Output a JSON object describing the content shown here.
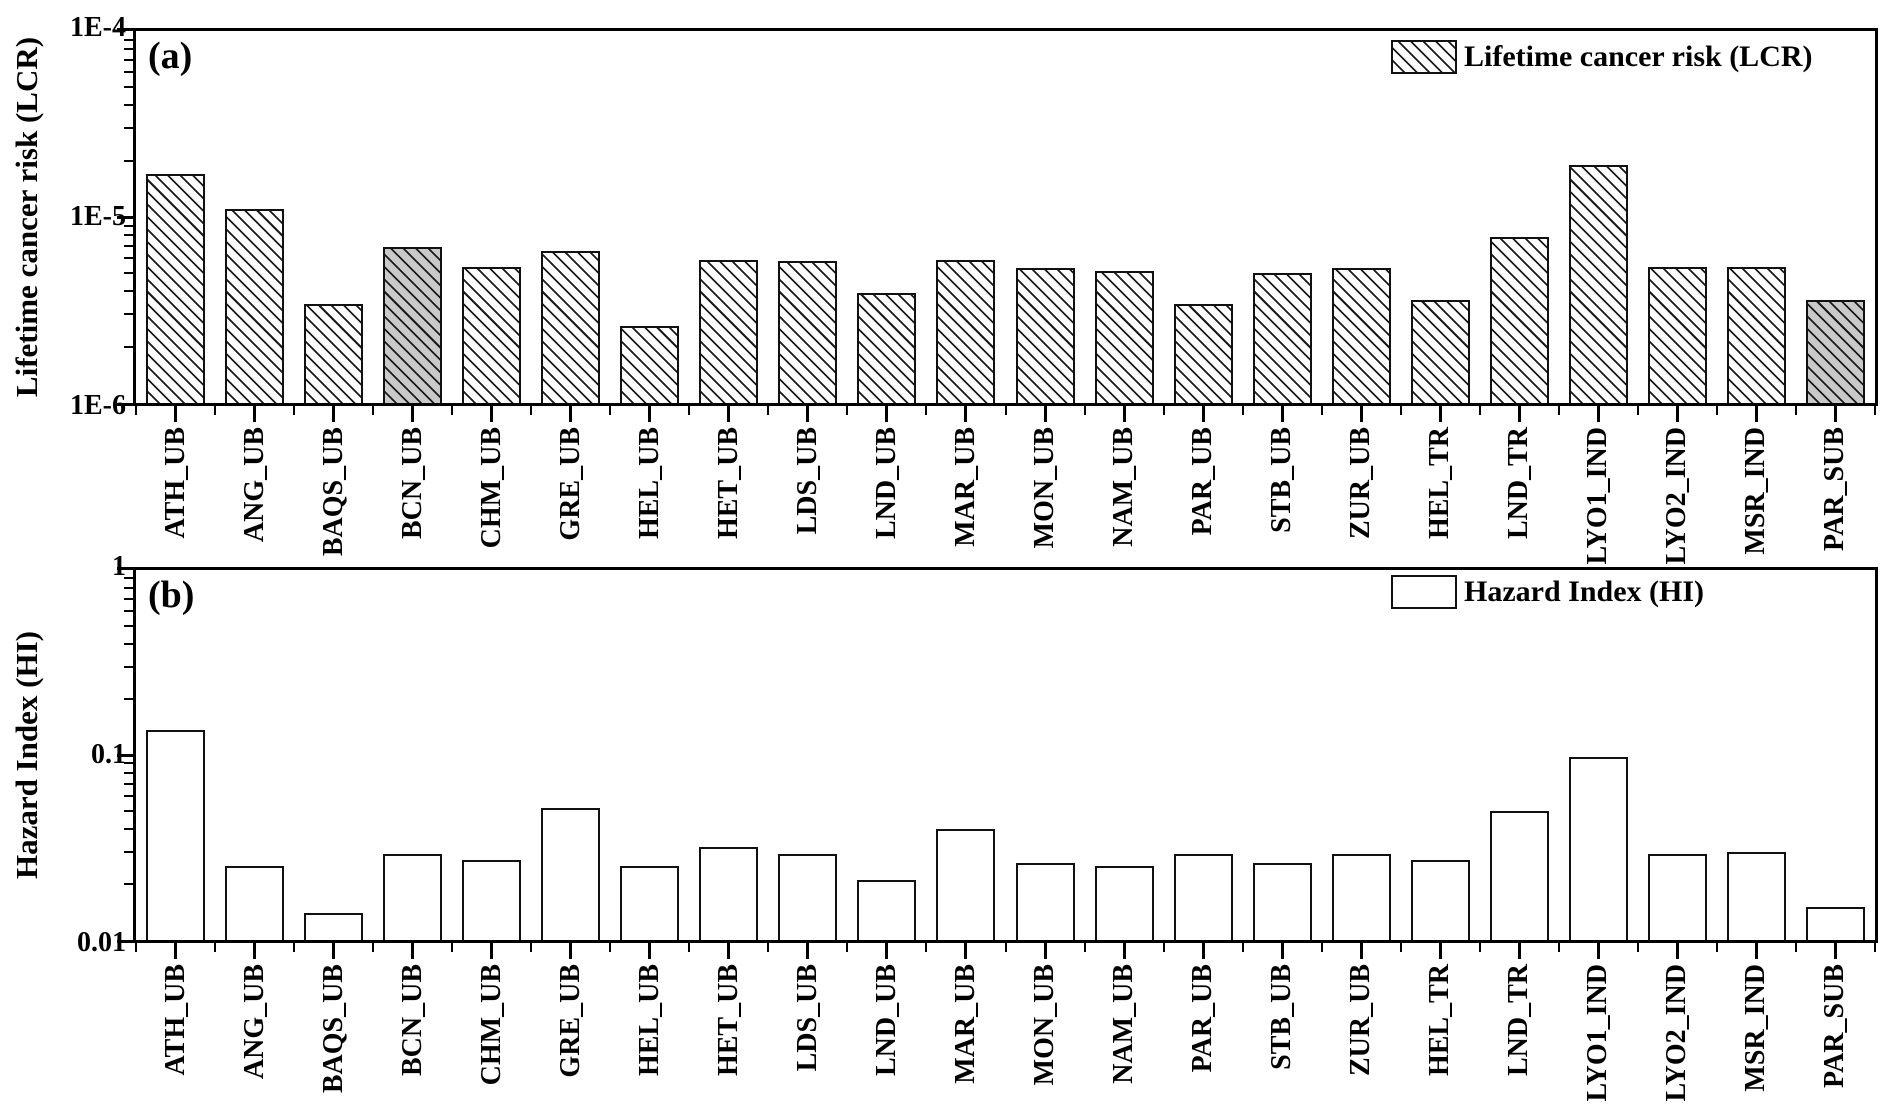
{
  "chart_data": [
    {
      "type": "bar",
      "panel": "(a)",
      "ylabel": "Lifetime cancer risk (LCR)",
      "legend": "Lifetime cancer risk (LCR)",
      "legend_position": "top-right",
      "yscale": "log",
      "ylim": [
        1e-06,
        0.0001
      ],
      "ytick_labels": [
        "1E-4",
        "1E-5",
        "1E-6"
      ],
      "grid": false,
      "hatch": "diagonal",
      "categories": [
        "ATH_UB",
        "ANG_UB",
        "BAQS_UB",
        "BCN_UB",
        "CHM_UB",
        "GRE_UB",
        "HEL_UB",
        "HET_UB",
        "LDS_UB",
        "LND_UB",
        "MAR_UB",
        "MON_UB",
        "NAM_UB",
        "PAR_UB",
        "STB_UB",
        "ZUR_UB",
        "HEL_TR",
        "LND_TR",
        "LYO1_IND",
        "LYO2_IND",
        "MSR_IND",
        "PAR_SUB"
      ],
      "values": [
        1.7e-05,
        1.1e-05,
        3.4e-06,
        6.9e-06,
        5.4e-06,
        6.6e-06,
        2.6e-06,
        5.9e-06,
        5.8e-06,
        3.9e-06,
        5.9e-06,
        5.3e-06,
        5.1e-06,
        3.4e-06,
        5e-06,
        5.3e-06,
        3.6e-06,
        7.8e-06,
        1.9e-05,
        5.4e-06,
        5.4e-06,
        3.6e-06
      ],
      "bar_fill": [
        "white",
        "white",
        "white",
        "gray",
        "white",
        "white",
        "white",
        "white",
        "white",
        "white",
        "white",
        "white",
        "white",
        "white",
        "white",
        "white",
        "white",
        "white",
        "white",
        "white",
        "white",
        "gray"
      ],
      "colors": {
        "bar_white": "#ffffff",
        "bar_gray": "#c9c9c9",
        "outline": "#111111"
      }
    },
    {
      "type": "bar",
      "panel": "(b)",
      "ylabel": "Hazard Index (HI)",
      "legend": "Hazard Index (HI)",
      "legend_position": "top-right",
      "yscale": "log",
      "ylim": [
        0.01,
        1
      ],
      "ytick_labels": [
        "1",
        "0.1",
        "0.01"
      ],
      "grid": false,
      "hatch": "none",
      "categories": [
        "ATH_UB",
        "ANG_UB",
        "BAQS_UB",
        "BCN_UB",
        "CHM_UB",
        "GRE_UB",
        "HEL_UB",
        "HET_UB",
        "LDS_UB",
        "LND_UB",
        "MAR_UB",
        "MON_UB",
        "NAM_UB",
        "PAR_UB",
        "STB_UB",
        "ZUR_UB",
        "HEL_TR",
        "LND_TR",
        "LYO1_IND",
        "LYO2_IND",
        "MSR_IND",
        "PAR_SUB"
      ],
      "values": [
        0.136,
        0.025,
        0.014,
        0.029,
        0.027,
        0.052,
        0.025,
        0.032,
        0.029,
        0.021,
        0.04,
        0.026,
        0.025,
        0.029,
        0.026,
        0.029,
        0.027,
        0.05,
        0.097,
        0.029,
        0.03,
        0.015
      ],
      "bar_fill": [
        "white",
        "white",
        "white",
        "white",
        "white",
        "white",
        "white",
        "white",
        "white",
        "white",
        "white",
        "white",
        "white",
        "white",
        "white",
        "white",
        "white",
        "white",
        "white",
        "white",
        "white",
        "white"
      ],
      "colors": {
        "bar_white": "#ffffff",
        "outline": "#111111"
      }
    }
  ]
}
